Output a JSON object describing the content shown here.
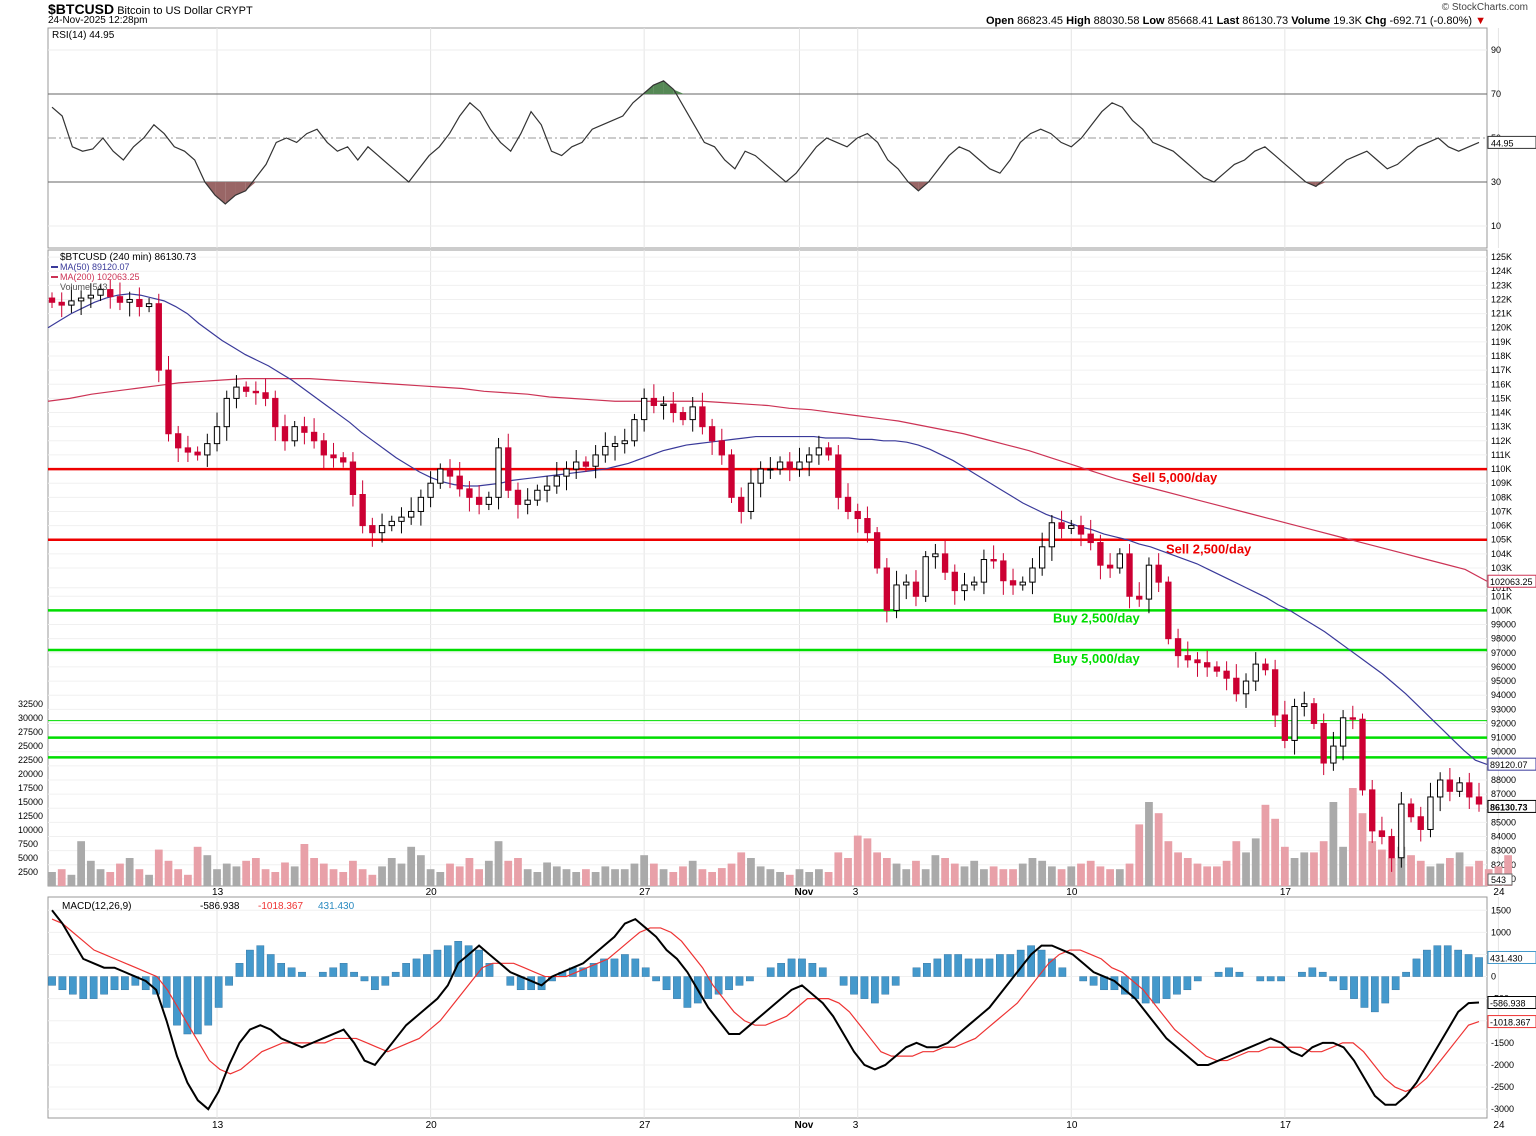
{
  "header": {
    "symbol": "$BTCUSD",
    "name": "Bitcoin to US Dollar",
    "exchange": "CRYPT",
    "datetime": "24-Nov-2025 12:28pm",
    "brand": "© StockCharts.com",
    "ohlc": {
      "open_label": "Open",
      "open": "86823.45",
      "high_label": "High",
      "high": "88030.58",
      "low_label": "Low",
      "low": "85668.41",
      "last_label": "Last",
      "last": "86130.73",
      "volume_label": "Volume",
      "volume": "19.3K",
      "chg_label": "Chg",
      "chg": "-692.71 (-0.80%)"
    }
  },
  "colors": {
    "up_candle": "#000000",
    "down_candle": "#cc0033",
    "ma50": "#3a3a9a",
    "ma200": "#cc3355",
    "sell_line": "#ee0000",
    "buy_line": "#00dd00",
    "rsi": "#333333",
    "macd": "#000000",
    "signal": "#ee3333",
    "histogram": "#4499cc",
    "vol_up": "#aaaaaa",
    "vol_down": "#e8a0a8"
  },
  "chart_data": [
    {
      "type": "line",
      "panel": "RSI",
      "legend": "RSI(14) 44.95",
      "ylim": [
        0,
        100
      ],
      "y_ticks": [
        "90",
        "70",
        "50",
        "30",
        "10"
      ],
      "reference_lines": [
        70,
        50,
        30
      ],
      "last_value_label": "44.95",
      "values": [
        64,
        60,
        46,
        44,
        45,
        50,
        44,
        40,
        46,
        50,
        56,
        52,
        46,
        44,
        40,
        30,
        24,
        20,
        24,
        26,
        32,
        38,
        48,
        50,
        48,
        52,
        54,
        48,
        44,
        46,
        40,
        46,
        42,
        38,
        34,
        30,
        36,
        42,
        46,
        52,
        60,
        66,
        62,
        54,
        48,
        44,
        52,
        62,
        56,
        44,
        42,
        46,
        48,
        54,
        56,
        58,
        60,
        66,
        70,
        74,
        76,
        72,
        64,
        56,
        48,
        46,
        40,
        36,
        44,
        42,
        38,
        34,
        30,
        34,
        40,
        46,
        50,
        48,
        46,
        50,
        52,
        48,
        40,
        36,
        30,
        26,
        30,
        36,
        42,
        46,
        44,
        40,
        36,
        34,
        40,
        48,
        52,
        54,
        52,
        48,
        46,
        50,
        56,
        62,
        66,
        64,
        58,
        54,
        48,
        46,
        44,
        40,
        36,
        32,
        30,
        34,
        38,
        40,
        44,
        46,
        42,
        38,
        34,
        30,
        28,
        32,
        36,
        40,
        42,
        44,
        40,
        36,
        38,
        42,
        46,
        48,
        50,
        46,
        44,
        46,
        48
      ]
    },
    {
      "type": "candlestick",
      "panel": "price",
      "legend_title": "$BTCUSD (240 min) 86130.73",
      "legend_ma50": "MA(50) 89120.07",
      "legend_ma200": "MA(200) 102063.25",
      "legend_volume": "Volume 543",
      "ylim": [
        80500,
        125500
      ],
      "y_ticks": [
        "125K",
        "124K",
        "123K",
        "122K",
        "121K",
        "120K",
        "119K",
        "118K",
        "117K",
        "116K",
        "115K",
        "114K",
        "113K",
        "112K",
        "111K",
        "110K",
        "109K",
        "108K",
        "107K",
        "106K",
        "105K",
        "104K",
        "103K",
        "101K",
        "101K",
        "100K",
        "99000",
        "98000",
        "97000",
        "96000",
        "95000",
        "94000",
        "93000",
        "92000",
        "91000",
        "90000",
        "89000",
        "88000",
        "87000",
        "86000",
        "85000",
        "84000",
        "83000",
        "82000",
        "81000"
      ],
      "x_ticks": [
        {
          "label": "13",
          "i": 17
        },
        {
          "label": "20",
          "i": 39
        },
        {
          "label": "27",
          "i": 61
        },
        {
          "label": "Nov",
          "i": 77
        },
        {
          "label": "3",
          "i": 83
        },
        {
          "label": "10",
          "i": 105
        },
        {
          "label": "17",
          "i": 127
        },
        {
          "label": "24",
          "i": 149
        }
      ],
      "closes": [
        121800,
        121600,
        121900,
        122100,
        122300,
        122700,
        122200,
        121800,
        122000,
        121500,
        121700,
        117000,
        112500,
        111500,
        111200,
        111000,
        111800,
        113000,
        115000,
        115800,
        115500,
        115400,
        115000,
        113000,
        112000,
        113000,
        112600,
        112000,
        111000,
        110800,
        110500,
        108200,
        106000,
        105500,
        106000,
        106300,
        106600,
        107000,
        108000,
        109000,
        110000,
        109500,
        108600,
        108000,
        107500,
        108000,
        111500,
        108500,
        107500,
        107800,
        108500,
        108800,
        109500,
        110000,
        110500,
        110200,
        111000,
        111600,
        111800,
        112000,
        113500,
        115000,
        114500,
        114600,
        114000,
        113500,
        114400,
        113000,
        112000,
        111000,
        108000,
        107000,
        109000,
        110000,
        110000,
        110500,
        110000,
        110500,
        111000,
        111500,
        111000,
        108000,
        107000,
        106500,
        105500,
        103000,
        100000,
        101800,
        102000,
        101000,
        103800,
        104000,
        102700,
        101400,
        101800,
        102000,
        103600,
        103500,
        102100,
        101800,
        102000,
        103000,
        104500,
        106200,
        105800,
        106000,
        105400,
        104800,
        103200,
        103000,
        104000,
        101000,
        100800,
        103200,
        102000,
        98000,
        96800,
        96500,
        96300,
        96000,
        95700,
        95200,
        94100,
        95000,
        96200,
        95800,
        92600,
        90800,
        93200,
        93400,
        92000,
        89200,
        90400,
        92400,
        92300,
        87300,
        84400,
        84000,
        82500,
        86300,
        85400,
        84500,
        86800,
        88000,
        87200,
        87800,
        86800,
        86300
      ],
      "ma50": [
        120000,
        120500,
        121000,
        121400,
        121800,
        122100,
        122300,
        122400,
        122300,
        122100,
        121900,
        121500,
        121000,
        120300,
        119700,
        119100,
        118600,
        118100,
        117700,
        117300,
        116800,
        116300,
        115700,
        115100,
        114500,
        113900,
        113300,
        112600,
        112000,
        111400,
        110800,
        110300,
        109800,
        109400,
        109100,
        108900,
        108800,
        108800,
        108900,
        109000,
        109200,
        109300,
        109400,
        109500,
        109600,
        109700,
        109800,
        109900,
        110000,
        110200,
        110400,
        110700,
        111000,
        111300,
        111500,
        111700,
        111800,
        111900,
        112000,
        112100,
        112200,
        112300,
        112300,
        112300,
        112300,
        112300,
        112300,
        112200,
        112200,
        112200,
        112100,
        112100,
        112000,
        112000,
        111900,
        111700,
        111400,
        111000,
        110600,
        110100,
        109600,
        109100,
        108600,
        108100,
        107600,
        107200,
        106800,
        106500,
        106200,
        105900,
        105700,
        105400,
        105200,
        105000,
        104700,
        104500,
        104200,
        103900,
        103600,
        103300,
        102900,
        102500,
        102100,
        101700,
        101300,
        100900,
        100400,
        100000,
        99500,
        99000,
        98500,
        97900,
        97300,
        96700,
        96100,
        95500,
        94800,
        94100,
        93300,
        92500,
        91700,
        90900,
        90100,
        89400,
        89100
      ],
      "ma200": [
        114800,
        115000,
        115300,
        115500,
        115700,
        115900,
        116100,
        116200,
        116300,
        116400,
        116400,
        116400,
        116400,
        116300,
        116200,
        116100,
        116000,
        115900,
        115800,
        115700,
        115500,
        115400,
        115300,
        115100,
        115000,
        114900,
        114800,
        114800,
        114800,
        114800,
        114800,
        114700,
        114600,
        114500,
        114300,
        114200,
        114000,
        113800,
        113600,
        113400,
        113100,
        112800,
        112500,
        112100,
        111700,
        111300,
        110800,
        110300,
        109800,
        109300,
        108900,
        108500,
        108100,
        107700,
        107300,
        106900,
        106500,
        106100,
        105700,
        105300,
        104900,
        104500,
        104100,
        103700,
        103300,
        102900,
        102063
      ],
      "sell_lines": [
        {
          "value": 110000,
          "label": "Sell 5,000/day"
        },
        {
          "value": 105000,
          "label": "Sell 2,500/day"
        }
      ],
      "buy_lines": [
        {
          "value": 100000,
          "label": "Buy 2,500/day"
        },
        {
          "value": 97200,
          "label": "Buy 5,000/day"
        },
        {
          "value": 92200,
          "label": ""
        },
        {
          "value": 91000,
          "label": ""
        },
        {
          "value": 89600,
          "label": ""
        }
      ],
      "right_labels": [
        "102063.25",
        "89120.07",
        "86130.73",
        "543"
      ]
    },
    {
      "type": "bar",
      "panel": "volume",
      "ylim": [
        0,
        35000
      ],
      "y_ticks": [
        "32500",
        "30000",
        "27500",
        "25000",
        "22500",
        "20000",
        "17500",
        "15000",
        "12500",
        "10000",
        "7500",
        "5000",
        "2500"
      ],
      "values": [
        2500,
        3000,
        2000,
        8000,
        4500,
        3000,
        2500,
        4000,
        5000,
        3000,
        2000,
        6500,
        4500,
        3000,
        2000,
        7000,
        5500,
        3000,
        4000,
        3500,
        4500,
        5000,
        3000,
        2500,
        4200,
        3500,
        7500,
        5000,
        4000,
        3000,
        2500,
        4500,
        3000,
        2000,
        3500,
        5000,
        4000,
        7000,
        5500,
        3000,
        2500,
        4000,
        3500,
        5000,
        3000,
        4500,
        8000,
        4500,
        5000,
        3000,
        2500,
        4200,
        3500,
        3000,
        2500,
        3000,
        2500,
        3500,
        3000,
        3000,
        4000,
        5500,
        4000,
        3000,
        2500,
        3500,
        4500,
        3000,
        2500,
        3200,
        4000,
        6000,
        5000,
        3500,
        3000,
        2500,
        2000,
        3000,
        2500,
        3000,
        2500,
        6000,
        5000,
        9000,
        8500,
        6000,
        5000,
        4000,
        3000,
        4500,
        3000,
        5500,
        5000,
        4000,
        3500,
        4500,
        3000,
        3500,
        3000,
        3000,
        4000,
        5000,
        4500,
        3500,
        3000,
        3500,
        4000,
        4500,
        3500,
        3000,
        3000,
        4000,
        11000,
        15000,
        13000,
        8000,
        6000,
        5000,
        4000,
        3500,
        3500,
        4500,
        8000,
        6000,
        8500,
        14500,
        12000,
        7000,
        5000,
        6000,
        6000,
        8000,
        15000,
        7000,
        17500,
        13000,
        8000,
        6500,
        5000,
        7000,
        5500,
        4500,
        3500,
        4000,
        5000,
        6000,
        3500,
        4500,
        3000,
        3500,
        5500
      ]
    },
    {
      "type": "line",
      "panel": "MACD",
      "legend_label": "MACD(12,26,9)",
      "legend_macd": "-586.938",
      "legend_signal": "-1018.367",
      "legend_hist": "431.430",
      "ylim": [
        -3200,
        1800
      ],
      "y_ticks": [
        "1500",
        "1000",
        "500",
        "0",
        "-500",
        "-1000",
        "-1500",
        "-2000",
        "-2500",
        "-3000"
      ],
      "last_value_labels": [
        "431.430",
        "-586.938",
        "-1018.367"
      ],
      "macd": [
        1500,
        1200,
        800,
        400,
        300,
        200,
        200,
        100,
        0,
        -100,
        -300,
        -1000,
        -1800,
        -2400,
        -2800,
        -3000,
        -2600,
        -2000,
        -1500,
        -1200,
        -1100,
        -1200,
        -1400,
        -1500,
        -1600,
        -1500,
        -1400,
        -1300,
        -1200,
        -1500,
        -1900,
        -2000,
        -1700,
        -1400,
        -1100,
        -900,
        -700,
        -500,
        -200,
        300,
        500,
        700,
        500,
        300,
        100,
        0,
        -100,
        -200,
        0,
        100,
        200,
        300,
        500,
        700,
        900,
        1200,
        1300,
        1100,
        900,
        600,
        400,
        100,
        -300,
        -700,
        -1000,
        -1300,
        -1300,
        -1100,
        -900,
        -700,
        -500,
        -300,
        -200,
        -400,
        -600,
        -900,
        -1300,
        -1700,
        -2000,
        -2100,
        -2000,
        -1800,
        -1600,
        -1500,
        -1600,
        -1600,
        -1500,
        -1300,
        -1100,
        -900,
        -700,
        -400,
        -100,
        200,
        500,
        700,
        700,
        600,
        500,
        300,
        100,
        0,
        -100,
        -300,
        -500,
        -800,
        -1100,
        -1400,
        -1600,
        -1800,
        -2000,
        -2000,
        -1900,
        -1800,
        -1700,
        -1600,
        -1500,
        -1400,
        -1500,
        -1700,
        -1800,
        -1600,
        -1500,
        -1500,
        -1600,
        -1900,
        -2300,
        -2700,
        -2900,
        -2900,
        -2700,
        -2400,
        -2000,
        -1600,
        -1200,
        -800,
        -600,
        -587
      ],
      "signal": [
        1300,
        1200,
        1000,
        800,
        600,
        500,
        400,
        300,
        200,
        100,
        0,
        -300,
        -700,
        -1100,
        -1500,
        -1900,
        -2100,
        -2200,
        -2100,
        -1900,
        -1700,
        -1600,
        -1500,
        -1500,
        -1500,
        -1500,
        -1500,
        -1400,
        -1400,
        -1400,
        -1500,
        -1600,
        -1700,
        -1600,
        -1500,
        -1400,
        -1200,
        -1000,
        -700,
        -400,
        -100,
        200,
        300,
        300,
        300,
        200,
        100,
        0,
        0,
        0,
        100,
        200,
        300,
        400,
        600,
        800,
        1000,
        1100,
        1100,
        1000,
        800,
        500,
        200,
        -200,
        -500,
        -800,
        -1000,
        -1100,
        -1100,
        -1000,
        -900,
        -700,
        -500,
        -500,
        -500,
        -600,
        -800,
        -1100,
        -1400,
        -1700,
        -1800,
        -1800,
        -1800,
        -1700,
        -1700,
        -1600,
        -1600,
        -1500,
        -1400,
        -1200,
        -1000,
        -800,
        -600,
        -300,
        0,
        300,
        500,
        600,
        600,
        500,
        400,
        200,
        100,
        -100,
        -300,
        -600,
        -900,
        -1200,
        -1400,
        -1600,
        -1800,
        -1900,
        -1900,
        -1800,
        -1700,
        -1700,
        -1600,
        -1600,
        -1600,
        -1600,
        -1700,
        -1700,
        -1600,
        -1500,
        -1500,
        -1700,
        -2000,
        -2300,
        -2500,
        -2600,
        -2500,
        -2300,
        -2000,
        -1700,
        -1400,
        -1100,
        -1018
      ],
      "histogram": [
        -200,
        -300,
        -400,
        -500,
        -500,
        -400,
        -300,
        -300,
        -200,
        -300,
        -400,
        -700,
        -1100,
        -1300,
        -1300,
        -1100,
        -700,
        -200,
        300,
        600,
        700,
        500,
        300,
        200,
        100,
        0,
        100,
        200,
        300,
        100,
        -100,
        -300,
        -200,
        100,
        300,
        400,
        500,
        600,
        700,
        800,
        700,
        600,
        300,
        0,
        -200,
        -300,
        -300,
        -300,
        -100,
        100,
        200,
        200,
        300,
        400,
        400,
        500,
        400,
        200,
        -100,
        -300,
        -500,
        -700,
        -600,
        -500,
        -400,
        -300,
        -200,
        -100,
        0,
        200,
        300,
        400,
        400,
        300,
        200,
        0,
        -200,
        -400,
        -500,
        -600,
        -400,
        -200,
        0,
        200,
        300,
        400,
        500,
        500,
        400,
        400,
        400,
        500,
        500,
        600,
        700,
        600,
        400,
        200,
        0,
        -100,
        -200,
        -300,
        -300,
        -400,
        -500,
        -600,
        -600,
        -500,
        -400,
        -300,
        -100,
        0,
        100,
        200,
        100,
        0,
        -100,
        -100,
        -100,
        0,
        100,
        200,
        100,
        -100,
        -300,
        -500,
        -700,
        -800,
        -600,
        -300,
        100,
        400,
        600,
        700,
        700,
        600,
        500,
        431
      ]
    }
  ]
}
